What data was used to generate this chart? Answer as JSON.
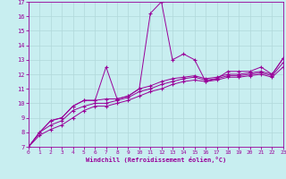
{
  "xlabel": "Windchill (Refroidissement éolien,°C)",
  "bg_color": "#c8eef0",
  "line_color": "#990099",
  "xmin": 0,
  "xmax": 23,
  "ymin": 7,
  "ymax": 17,
  "grid_color": "#b0d8da",
  "series1_x": [
    0,
    1,
    2,
    3,
    4,
    5,
    6,
    7,
    8,
    9,
    10,
    11,
    12,
    13,
    14,
    15,
    16,
    17,
    18,
    19,
    20,
    21,
    22,
    23
  ],
  "series1_y": [
    7.0,
    8.0,
    8.8,
    9.0,
    9.8,
    10.2,
    10.2,
    12.5,
    10.3,
    10.5,
    11.0,
    16.2,
    17.0,
    13.0,
    13.4,
    13.0,
    11.5,
    11.7,
    12.2,
    12.2,
    12.2,
    12.5,
    12.0,
    13.1
  ],
  "series2_x": [
    0,
    1,
    2,
    3,
    4,
    5,
    6,
    7,
    8,
    9,
    10,
    11,
    12,
    13,
    14,
    15,
    16,
    17,
    18,
    19,
    20,
    21,
    22,
    23
  ],
  "series2_y": [
    7.0,
    8.0,
    8.8,
    9.0,
    9.8,
    10.2,
    10.2,
    10.3,
    10.3,
    10.5,
    11.0,
    11.2,
    11.5,
    11.7,
    11.8,
    11.9,
    11.7,
    11.8,
    12.0,
    12.0,
    12.1,
    12.2,
    12.0,
    13.1
  ],
  "series3_x": [
    0,
    1,
    2,
    3,
    4,
    5,
    6,
    7,
    8,
    9,
    10,
    11,
    12,
    13,
    14,
    15,
    16,
    17,
    18,
    19,
    20,
    21,
    22,
    23
  ],
  "series3_y": [
    7.0,
    8.0,
    8.5,
    8.8,
    9.5,
    9.8,
    10.0,
    10.0,
    10.2,
    10.4,
    10.8,
    11.0,
    11.3,
    11.5,
    11.7,
    11.8,
    11.6,
    11.7,
    11.9,
    11.9,
    12.0,
    12.1,
    11.9,
    12.8
  ],
  "series4_x": [
    0,
    1,
    2,
    3,
    4,
    5,
    6,
    7,
    8,
    9,
    10,
    11,
    12,
    13,
    14,
    15,
    16,
    17,
    18,
    19,
    20,
    21,
    22,
    23
  ],
  "series4_y": [
    7.0,
    7.8,
    8.2,
    8.5,
    9.0,
    9.5,
    9.8,
    9.8,
    10.0,
    10.2,
    10.5,
    10.8,
    11.0,
    11.3,
    11.5,
    11.6,
    11.5,
    11.6,
    11.8,
    11.8,
    11.9,
    12.0,
    11.8,
    12.5
  ]
}
